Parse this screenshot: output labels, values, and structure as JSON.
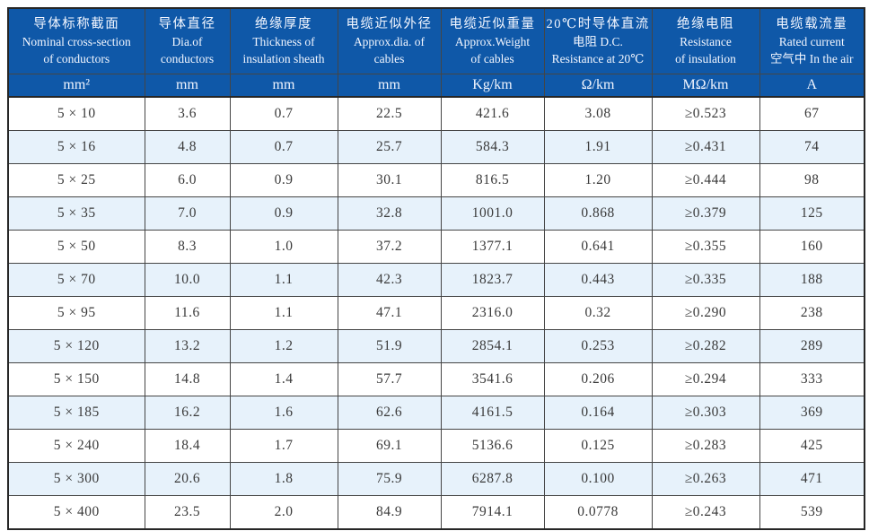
{
  "colors": {
    "header_bg": "#0f58a8",
    "header_text": "#f2f6ff",
    "row_alt_bg": "#e7f2fb",
    "row_bg": "#ffffff",
    "body_text": "#3a3a3a",
    "border": "#262626"
  },
  "table": {
    "columns": [
      {
        "lines": [
          "导体标称截面",
          "Nominal cross-section",
          "of conductors"
        ],
        "unit": "mm²"
      },
      {
        "lines": [
          "导体直径",
          "Dia.of",
          "conductors"
        ],
        "unit": "mm"
      },
      {
        "lines": [
          "绝缘厚度",
          "Thickness of",
          "insulation sheath"
        ],
        "unit": "mm"
      },
      {
        "lines": [
          "电缆近似外径",
          "Approx.dia. of",
          "cables"
        ],
        "unit": "mm"
      },
      {
        "lines": [
          "电缆近似重量",
          "Approx.Weight",
          "of cables"
        ],
        "unit": "Kg/km"
      },
      {
        "lines": [
          "20℃时导体直流",
          "电阻 D.C.",
          "Resistance at 20℃"
        ],
        "unit": "Ω/km"
      },
      {
        "lines": [
          "绝缘电阻",
          "Resistance",
          "of insulation"
        ],
        "unit": "MΩ/km"
      },
      {
        "lines": [
          "电缆载流量",
          "Rated current",
          "空气中 In the air"
        ],
        "unit": "A"
      }
    ],
    "rows": [
      [
        "5 × 10",
        "3.6",
        "0.7",
        "22.5",
        "421.6",
        "3.08",
        "≥0.523",
        "67"
      ],
      [
        "5 × 16",
        "4.8",
        "0.7",
        "25.7",
        "584.3",
        "1.91",
        "≥0.431",
        "74"
      ],
      [
        "5 × 25",
        "6.0",
        "0.9",
        "30.1",
        "816.5",
        "1.20",
        "≥0.444",
        "98"
      ],
      [
        "5 × 35",
        "7.0",
        "0.9",
        "32.8",
        "1001.0",
        "0.868",
        "≥0.379",
        "125"
      ],
      [
        "5 × 50",
        "8.3",
        "1.0",
        "37.2",
        "1377.1",
        "0.641",
        "≥0.355",
        "160"
      ],
      [
        "5 × 70",
        "10.0",
        "1.1",
        "42.3",
        "1823.7",
        "0.443",
        "≥0.335",
        "188"
      ],
      [
        "5 × 95",
        "11.6",
        "1.1",
        "47.1",
        "2316.0",
        "0.32",
        "≥0.290",
        "238"
      ],
      [
        "5 × 120",
        "13.2",
        "1.2",
        "51.9",
        "2854.1",
        "0.253",
        "≥0.282",
        "289"
      ],
      [
        "5 × 150",
        "14.8",
        "1.4",
        "57.7",
        "3541.6",
        "0.206",
        "≥0.294",
        "333"
      ],
      [
        "5 × 185",
        "16.2",
        "1.6",
        "62.6",
        "4161.5",
        "0.164",
        "≥0.303",
        "369"
      ],
      [
        "5 × 240",
        "18.4",
        "1.7",
        "69.1",
        "5136.6",
        "0.125",
        "≥0.283",
        "425"
      ],
      [
        "5 × 300",
        "20.6",
        "1.8",
        "75.9",
        "6287.8",
        "0.100",
        "≥0.263",
        "471"
      ],
      [
        "5 × 400",
        "23.5",
        "2.0",
        "84.9",
        "7914.1",
        "0.0778",
        "≥0.243",
        "539"
      ]
    ]
  }
}
